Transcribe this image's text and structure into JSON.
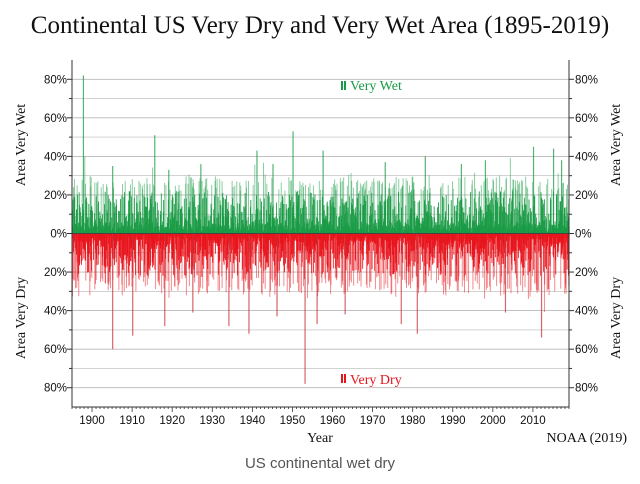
{
  "chart_data": {
    "type": "bar",
    "title": "Continental US Very Dry and Very Wet Area (1895-2019)",
    "xlabel": "Year",
    "ylabel_top": "Area Very Wet",
    "ylabel_bottom": "Area Very Dry",
    "credit": "NOAA (2019)",
    "xlim": [
      1895,
      2019
    ],
    "ylim": [
      -90,
      90
    ],
    "x_ticks": [
      "1900",
      "1910",
      "1920",
      "1930",
      "1940",
      "1950",
      "1960",
      "1970",
      "1980",
      "1990",
      "2000",
      "2010"
    ],
    "y_ticks": [
      "80%",
      "60%",
      "40%",
      "20%",
      "0%",
      "20%",
      "40%",
      "60%",
      "80%"
    ],
    "legend": {
      "wet": "Very Wet",
      "dry": "Very Dry"
    },
    "colors": {
      "wet": "#1a9b46",
      "dry": "#e8141c",
      "grid": "#b8b8b8",
      "axis": "#333333"
    },
    "series": [
      {
        "name": "Very Wet",
        "notable_peaks": [
          {
            "year": 1897.7,
            "value": 82
          },
          {
            "year": 1905,
            "value": 35
          },
          {
            "year": 1915.5,
            "value": 51
          },
          {
            "year": 1919,
            "value": 33
          },
          {
            "year": 1927,
            "value": 36
          },
          {
            "year": 1941,
            "value": 43
          },
          {
            "year": 1945,
            "value": 36
          },
          {
            "year": 1950,
            "value": 53
          },
          {
            "year": 1957.5,
            "value": 43
          },
          {
            "year": 1973,
            "value": 37
          },
          {
            "year": 1983,
            "value": 40
          },
          {
            "year": 1992,
            "value": 36
          },
          {
            "year": 1998,
            "value": 38
          },
          {
            "year": 2010,
            "value": 45
          },
          {
            "year": 2015,
            "value": 44
          },
          {
            "year": 2017,
            "value": 38
          }
        ]
      },
      {
        "name": "Very Dry",
        "notable_peaks": [
          {
            "year": 1905,
            "value": 60
          },
          {
            "year": 1910,
            "value": 53
          },
          {
            "year": 1918,
            "value": 48
          },
          {
            "year": 1925,
            "value": 41
          },
          {
            "year": 1934,
            "value": 48
          },
          {
            "year": 1939,
            "value": 52
          },
          {
            "year": 1946,
            "value": 43
          },
          {
            "year": 1953,
            "value": 78
          },
          {
            "year": 1956,
            "value": 47
          },
          {
            "year": 1963,
            "value": 42
          },
          {
            "year": 1977,
            "value": 47
          },
          {
            "year": 1981,
            "value": 52
          },
          {
            "year": 2003,
            "value": 41
          },
          {
            "year": 2012,
            "value": 54
          }
        ]
      }
    ]
  },
  "caption": "US continental wet dry"
}
